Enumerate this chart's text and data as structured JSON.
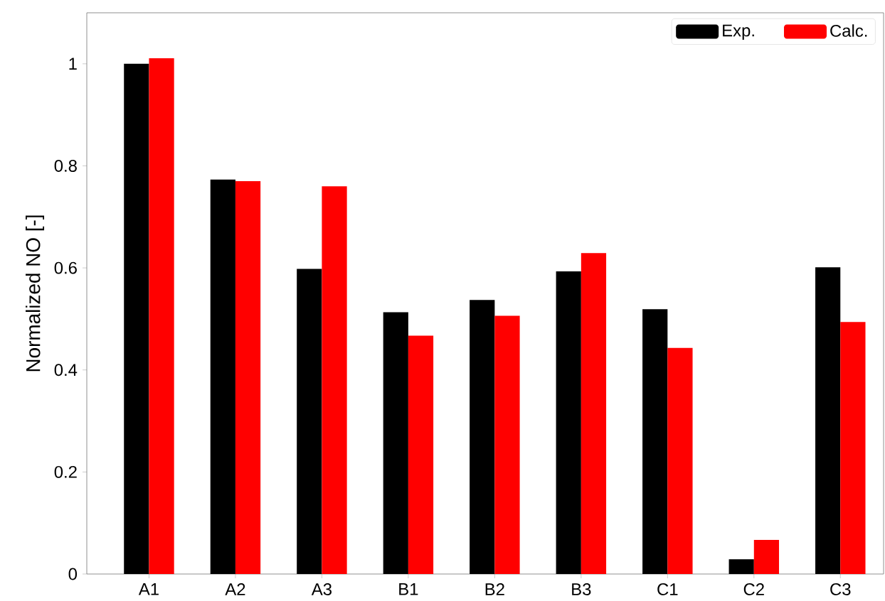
{
  "chart_data": {
    "type": "bar",
    "ylabel": "Normalized NO [-]",
    "categories": [
      "A1",
      "A2",
      "A3",
      "B1",
      "B2",
      "B3",
      "C1",
      "C2",
      "C3"
    ],
    "series": [
      {
        "name": "Exp.",
        "color": "#000000",
        "values": [
          1.0,
          0.773,
          0.598,
          0.513,
          0.537,
          0.593,
          0.519,
          0.029,
          0.601
        ]
      },
      {
        "name": "Calc.",
        "color": "#ff0000",
        "values": [
          1.011,
          0.77,
          0.76,
          0.467,
          0.506,
          0.629,
          0.443,
          0.067,
          0.494
        ]
      }
    ],
    "ylim": [
      0,
      1.1
    ],
    "yticks": [
      0,
      0.2,
      0.4,
      0.6,
      0.8,
      1
    ],
    "grid": false,
    "legend": "top right"
  }
}
